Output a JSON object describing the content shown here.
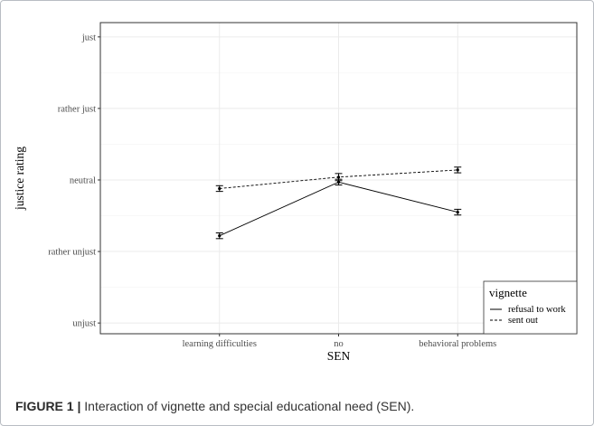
{
  "figure": {
    "caption_label": "FIGURE 1 |",
    "caption_text": " Interaction of vignette and special educational need (SEN)."
  },
  "chart_data": {
    "type": "line",
    "xlabel": "SEN",
    "ylabel": "justice rating",
    "categories": [
      "learning difficulties",
      "no",
      "behavioral problems"
    ],
    "y_ticks": [
      {
        "value": 1,
        "label": "unjust"
      },
      {
        "value": 2,
        "label": "rather unjust"
      },
      {
        "value": 3,
        "label": "neutral"
      },
      {
        "value": 4,
        "label": "rather just"
      },
      {
        "value": 5,
        "label": "just"
      }
    ],
    "ylim": [
      0.85,
      5.2
    ],
    "grid": true,
    "series": [
      {
        "name": "refusal to work",
        "line_style": "solid",
        "values": [
          2.22,
          2.97,
          2.55
        ],
        "error": [
          0.04,
          0.04,
          0.04
        ]
      },
      {
        "name": "sent out",
        "line_style": "dashed",
        "values": [
          2.88,
          3.04,
          3.14
        ],
        "error": [
          0.04,
          0.05,
          0.04
        ]
      }
    ],
    "legend": {
      "title": "vignette",
      "position": "bottom-right"
    }
  }
}
